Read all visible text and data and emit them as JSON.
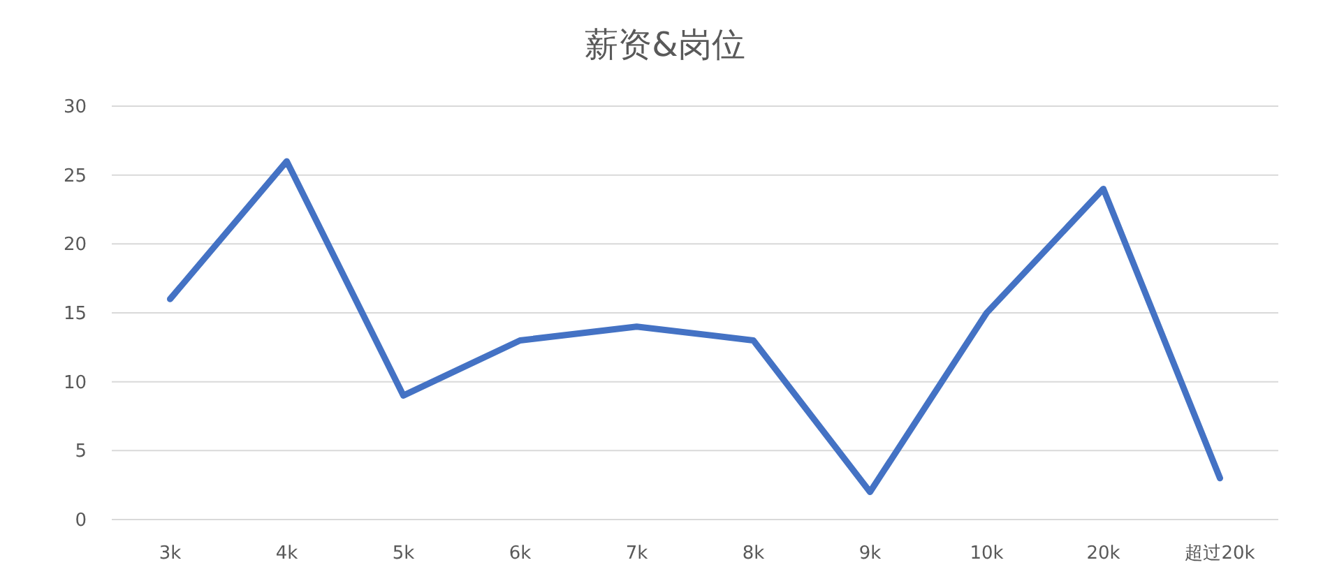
{
  "chart_data": {
    "type": "line",
    "title": "薪资&岗位",
    "categories": [
      "3k",
      "4k",
      "5k",
      "6k",
      "7k",
      "8k",
      "9k",
      "10k",
      "20k",
      "超过20k"
    ],
    "series": [
      {
        "color": "#4472c4",
        "values": [
          16,
          26,
          9,
          13,
          14,
          13,
          2,
          15,
          24,
          3
        ]
      }
    ],
    "ylim": [
      0,
      30
    ],
    "yticks": [
      0,
      5,
      10,
      15,
      20,
      25,
      30
    ],
    "grid": "y",
    "marker": "none",
    "line_style": "solid"
  }
}
